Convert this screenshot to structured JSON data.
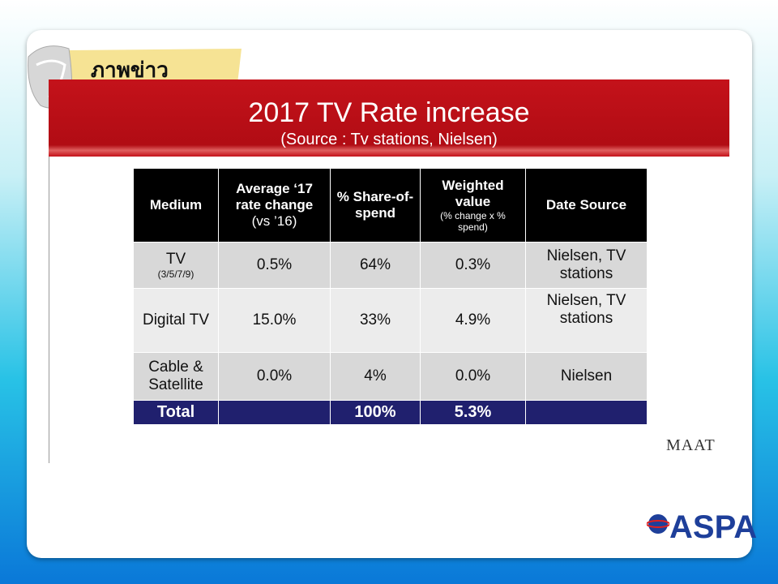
{
  "tag": "ภาพข่าว",
  "slide": {
    "title": "2017 TV Rate increase",
    "subtitle": "(Source : Tv stations, Nielsen)"
  },
  "table": {
    "header": [
      {
        "text": "Medium"
      },
      {
        "text": "Average ‘17 rate change",
        "note": "(vs ’16)"
      },
      {
        "text": "% Share-of-spend"
      },
      {
        "text": "Weighted value",
        "note": "(% change x % spend)"
      },
      {
        "text": "Date Source"
      }
    ],
    "rows": [
      {
        "medium": "TV",
        "medium_note": "(3/5/7/9)",
        "rate": "0.5%",
        "share": "64%",
        "weighted": "0.3%",
        "source": "Nielsen, TV stations"
      },
      {
        "medium": "Digital TV",
        "rate": "15.0%",
        "share": "33%",
        "weighted": "4.9%",
        "source": "Nielsen, TV stations"
      },
      {
        "medium": "Cable & Satellite",
        "rate": "0.0%",
        "share": "4%",
        "weighted": "0.0%",
        "source": "Nielsen"
      }
    ],
    "total": {
      "label": "Total",
      "share": "100%",
      "weighted": "5.3%"
    }
  },
  "logos": {
    "maat": "MAAT",
    "aspa": "ASPA"
  }
}
